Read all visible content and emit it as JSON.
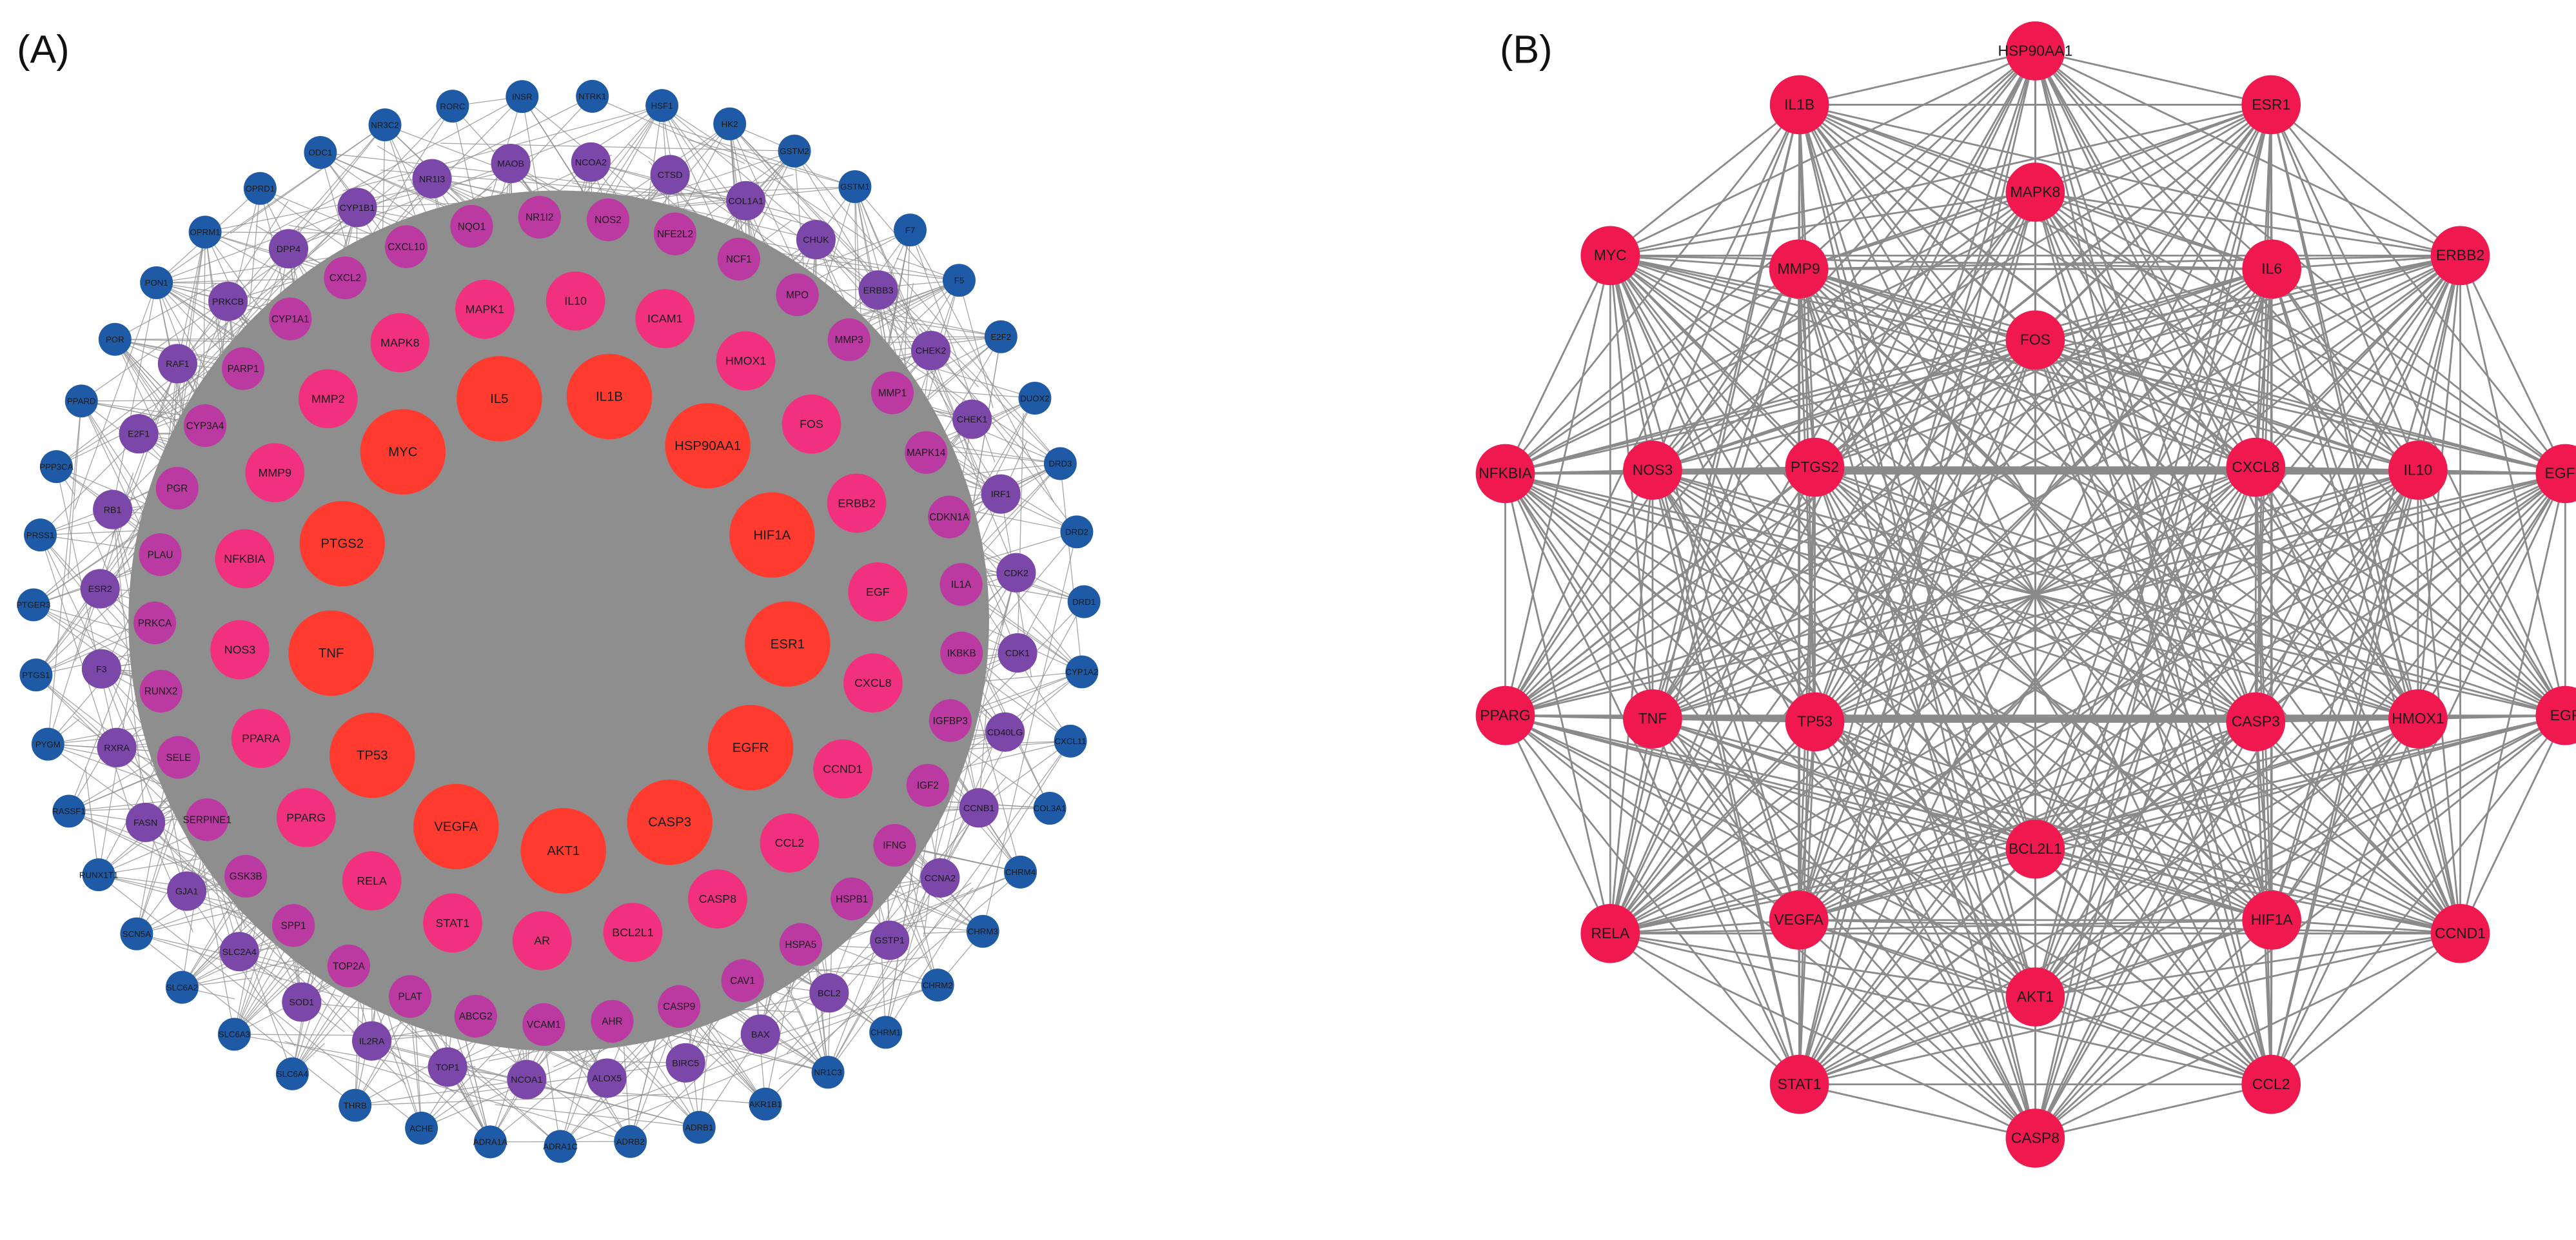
{
  "panels": [
    {
      "label": "(A)",
      "rings": [
        [
          "IL5",
          "IL1B",
          "HSP90AA1",
          "HIF1A",
          "ESR1",
          "EGFR",
          "CASP3",
          "AKT1",
          "VEGFA",
          "TP53",
          "TNF",
          "PTGS2",
          "MYC"
        ],
        [
          "IL10",
          "ICAM1",
          "HMOX1",
          "FOS",
          "ERBB2",
          "EGF",
          "CXCL8",
          "CCND1",
          "CCL2",
          "CASP8",
          "BCL2L1",
          "AR",
          "STAT1",
          "RELA",
          "PPARG",
          "PPARA",
          "NOS3",
          "NFKBIA",
          "MMP9",
          "MMP2",
          "MAPK8",
          "MAPK1"
        ],
        [
          "NOS2",
          "NFE2L2",
          "NCF1",
          "MPO",
          "MMP3",
          "MMP1",
          "MAPK14",
          "CDKN1A",
          "IL1A",
          "IKBKB",
          "IGFBP3",
          "IGF2",
          "IFNG",
          "HSPB1",
          "HSPA5",
          "CAV1",
          "CASP9",
          "AHR",
          "VCAM1",
          "ABCG2",
          "PLAT",
          "TOP2A",
          "SPP1",
          "GSK3B",
          "SERPINE1",
          "SELE",
          "RUNX2",
          "PRKCA",
          "PLAU",
          "PGR",
          "CYP3A4",
          "PARP1",
          "CYP1A1",
          "CXCL2",
          "CXCL10",
          "NQO1",
          "NR1I2"
        ],
        [
          "CTSD",
          "COL1A1",
          "CHUK",
          "ERBB3",
          "CHEK2",
          "CHEK1",
          "IRF1",
          "CDK2",
          "CDK1",
          "CD40LG",
          "CCNB1",
          "CCNA2",
          "GSTP1",
          "BCL2",
          "BAX",
          "BIRC5",
          "ALOX5",
          "NCOA1",
          "TOP1",
          "IL2RA",
          "SOD1",
          "SLC2A4",
          "GJA1",
          "FASN",
          "RXRA",
          "F3",
          "ESR2",
          "RB1",
          "E2F1",
          "RAF1",
          "PRKCB",
          "DPP4",
          "CYP1B1",
          "NR1I3",
          "MAOB",
          "NCOA2"
        ],
        [
          "INSR",
          "NTRK1",
          "HSF1",
          "HK2",
          "GSTM2",
          "GSTM1",
          "F7",
          "F5",
          "E2F2",
          "DUOX2",
          "DRD3",
          "DRD2",
          "DRD1",
          "CYP1A2",
          "CXCL11",
          "COL3A1",
          "CHRM4",
          "CHRM3",
          "CHRM2",
          "CHRM1",
          "NR1C3",
          "AKR1B1",
          "ADRB1",
          "ADRB2",
          "ADRA1C",
          "ADRA1A",
          "ACHE",
          "THRB",
          "SLC6A4",
          "SLC6A3",
          "SLC6A2",
          "SCN5A",
          "RUNX1T1",
          "RASSF1",
          "PYGM",
          "PTGS1",
          "PTGER3",
          "PRSS1",
          "PPP3CA",
          "PPARD",
          "POR",
          "PON1",
          "OPRM1",
          "OPRD1",
          "ODC1",
          "NR3C2",
          "RORC"
        ]
      ]
    },
    {
      "label": "(B)",
      "rings": [
        [
          "HSP90AA1",
          "ESR1",
          "ERBB2",
          "EGFR",
          "EGF",
          "CCND1",
          "CCL2",
          "CASP8",
          "STAT1",
          "RELA",
          "PPARG",
          "NFKBIA",
          "MYC",
          "IL1B"
        ],
        [
          "MAPK8",
          "IL6",
          "IL10",
          "HMOX1",
          "HIF1A",
          "AKT1",
          "VEGFA",
          "TNF",
          "NOS3",
          "MMP9"
        ],
        [
          "FOS",
          "CXCL8",
          "CASP3",
          "BCL2L1",
          "TP53",
          "PTGS2"
        ]
      ]
    }
  ]
}
